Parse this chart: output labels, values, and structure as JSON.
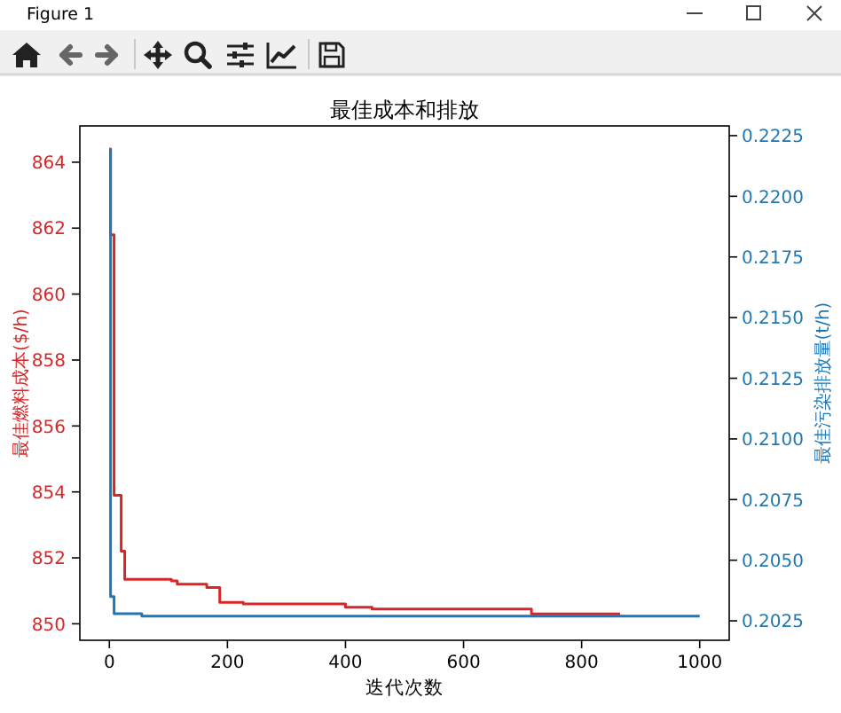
{
  "chart_data": {
    "type": "step",
    "title": "最佳成本和排放",
    "xlabel": "迭代次数",
    "ylabel": "最佳燃料成本($/h)",
    "y2label": "最佳污染排放量(t/h)",
    "annotations": [
      "Figure 1"
    ],
    "series": [
      {
        "color": "#d62728",
        "x": [
          0,
          2,
          8,
          20,
          26,
          105,
          115,
          165,
          187,
          227,
          400,
          445,
          715,
          865
        ],
        "values": [
          864.4,
          861.8,
          853.9,
          852.2,
          851.35,
          851.3,
          851.2,
          851.1,
          850.65,
          850.6,
          850.5,
          850.45,
          850.3,
          850.3
        ]
      },
      {
        "color": "#1f77b4",
        "axis": "y2",
        "x": [
          0,
          2,
          8,
          55,
          1000
        ],
        "values": [
          0.2219,
          0.2035,
          0.2028,
          0.2027,
          0.2027
        ]
      }
    ],
    "xlim": [
      -50,
      1050
    ],
    "xticks": [
      0,
      200,
      400,
      600,
      800,
      1000
    ],
    "ylim": [
      849.5,
      865.1
    ],
    "yticks": [
      850,
      852,
      854,
      856,
      858,
      860,
      862,
      864
    ],
    "y2lim": [
      0.2017,
      0.2229
    ],
    "y2ticks": [
      0.2025,
      {
        "value": 0.205,
        "label": "0.2050"
      },
      0.2075,
      {
        "value": 0.21,
        "label": "0.2100"
      },
      0.2125,
      {
        "value": 0.215,
        "label": "0.2150"
      },
      0.2175,
      {
        "value": 0.22,
        "label": "0.2200"
      },
      0.2225
    ]
  }
}
